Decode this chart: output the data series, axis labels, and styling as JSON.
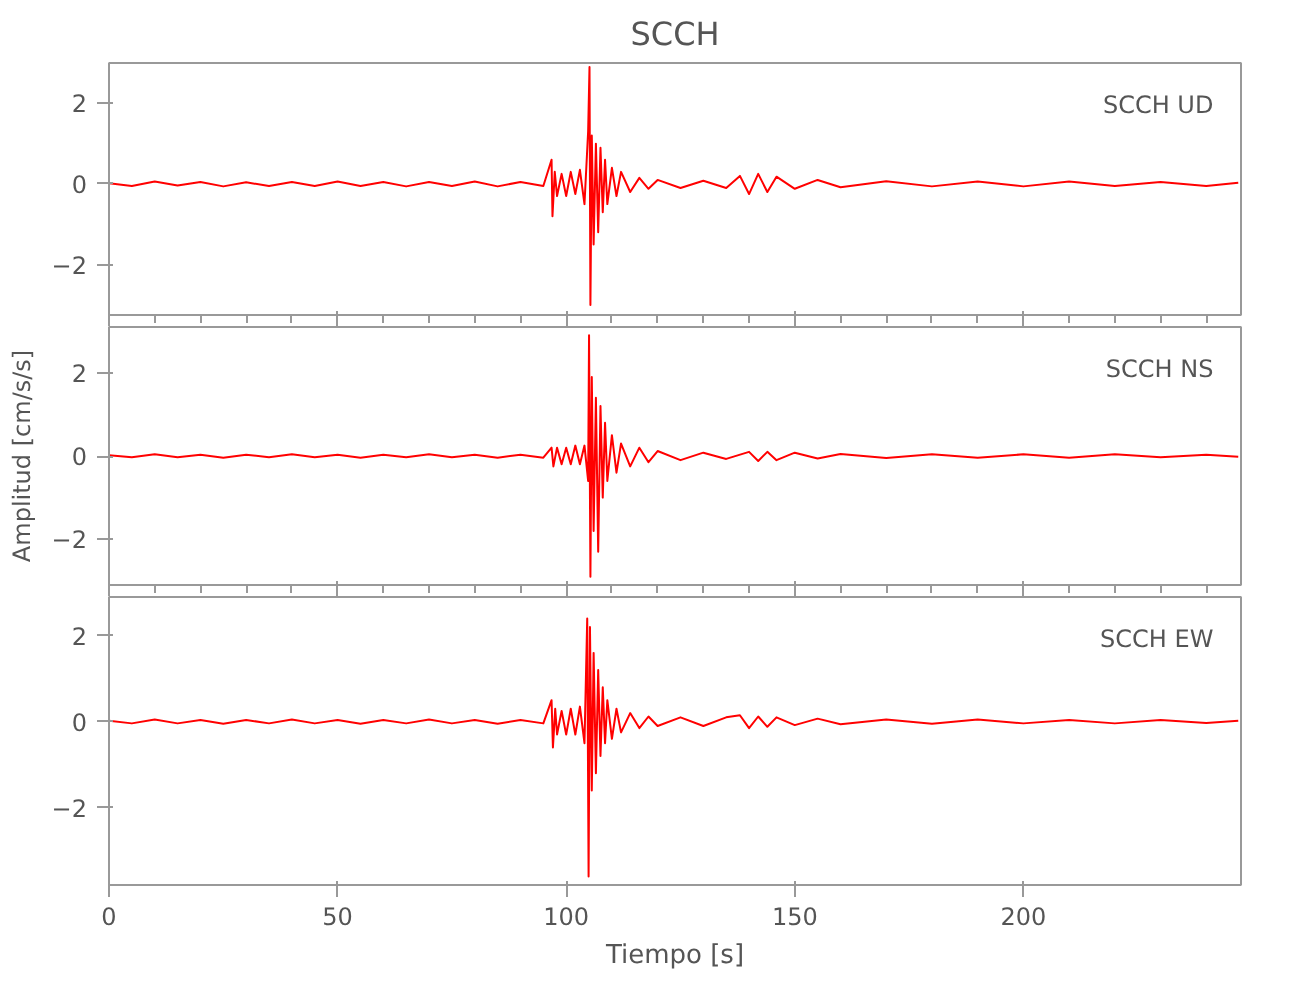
{
  "chart_data": [
    {
      "type": "line",
      "title": "SCCH",
      "annotations": [
        "SCCH  UD"
      ],
      "xlim": [
        0,
        247.6
      ],
      "ylim": [
        -3.25,
        3.0
      ],
      "yticks": [
        -2,
        0,
        2
      ],
      "tick_labels": "y",
      "grid": false,
      "series": [
        {
          "color": "#ff0000",
          "x": [
            0,
            5,
            10,
            15,
            20,
            25,
            30,
            35,
            40,
            45,
            50,
            55,
            60,
            65,
            70,
            75,
            80,
            85,
            90,
            95,
            96.8,
            97,
            97.5,
            98,
            99,
            100,
            101,
            102,
            103,
            104,
            104.8,
            105.1,
            105.3,
            105.6,
            106,
            106.5,
            107,
            107.5,
            108,
            108.5,
            109,
            110,
            111,
            112,
            114,
            116,
            118,
            120,
            125,
            130,
            135,
            138,
            140,
            142,
            144,
            146,
            150,
            155,
            160,
            170,
            180,
            190,
            200,
            210,
            220,
            230,
            240,
            247
          ],
          "values": [
            0.02,
            -0.05,
            0.06,
            -0.04,
            0.05,
            -0.06,
            0.04,
            -0.05,
            0.05,
            -0.05,
            0.06,
            -0.05,
            0.05,
            -0.06,
            0.05,
            -0.05,
            0.06,
            -0.06,
            0.05,
            -0.05,
            0.6,
            -0.8,
            0.3,
            -0.3,
            0.25,
            -0.3,
            0.3,
            -0.25,
            0.35,
            -0.5,
            1.3,
            2.9,
            -3.0,
            1.2,
            -1.5,
            1.0,
            -1.2,
            0.9,
            -0.7,
            0.6,
            -0.5,
            0.4,
            -0.3,
            0.3,
            -0.2,
            0.15,
            -0.12,
            0.1,
            -0.1,
            0.08,
            -0.1,
            0.2,
            -0.25,
            0.25,
            -0.2,
            0.18,
            -0.12,
            0.1,
            -0.08,
            0.07,
            -0.06,
            0.06,
            -0.06,
            0.06,
            -0.05,
            0.05,
            -0.05,
            0.03
          ]
        }
      ]
    },
    {
      "type": "line",
      "ylabel": "Amplitud [cm/s/s]",
      "annotations": [
        "SCCH  NS"
      ],
      "xlim": [
        0,
        247.6
      ],
      "ylim": [
        -3.1,
        3.1
      ],
      "yticks": [
        -2,
        0,
        2
      ],
      "tick_labels": "y",
      "grid": false,
      "series": [
        {
          "color": "#ff0000",
          "x": [
            0,
            5,
            10,
            15,
            20,
            25,
            30,
            35,
            40,
            45,
            50,
            55,
            60,
            65,
            70,
            75,
            80,
            85,
            90,
            95,
            96.8,
            97.2,
            98,
            99,
            100,
            101,
            102,
            103,
            104,
            104.8,
            105.0,
            105.3,
            105.6,
            106,
            106.5,
            107,
            107.5,
            108,
            108.5,
            109,
            110,
            111,
            112,
            114,
            116,
            118,
            120,
            125,
            130,
            135,
            140,
            142,
            144,
            146,
            150,
            155,
            160,
            170,
            180,
            190,
            200,
            210,
            220,
            230,
            240,
            247
          ],
          "values": [
            0.02,
            -0.03,
            0.04,
            -0.03,
            0.03,
            -0.04,
            0.03,
            -0.03,
            0.04,
            -0.03,
            0.03,
            -0.04,
            0.03,
            -0.03,
            0.04,
            -0.03,
            0.03,
            -0.04,
            0.03,
            -0.04,
            0.2,
            -0.25,
            0.2,
            -0.2,
            0.2,
            -0.2,
            0.25,
            -0.2,
            0.25,
            -0.6,
            2.9,
            -2.9,
            1.9,
            -1.8,
            1.4,
            -2.3,
            1.2,
            -1.0,
            0.8,
            -0.6,
            0.5,
            -0.4,
            0.3,
            -0.25,
            0.2,
            -0.15,
            0.12,
            -0.1,
            0.08,
            -0.07,
            0.1,
            -0.12,
            0.1,
            -0.1,
            0.08,
            -0.06,
            0.05,
            -0.05,
            0.04,
            -0.04,
            0.04,
            -0.04,
            0.04,
            -0.03,
            0.03,
            -0.02
          ]
        }
      ]
    },
    {
      "type": "line",
      "xlabel": "Tiempo [s]",
      "annotations": [
        "SCCH  EW"
      ],
      "xlim": [
        0,
        247.6
      ],
      "ylim": [
        -3.8,
        2.9
      ],
      "xticks": [
        0,
        50,
        100,
        150,
        200
      ],
      "yticks": [
        -2,
        0,
        2
      ],
      "grid": false,
      "series": [
        {
          "color": "#ff0000",
          "x": [
            0,
            5,
            10,
            15,
            20,
            25,
            30,
            35,
            40,
            45,
            50,
            55,
            60,
            65,
            70,
            75,
            80,
            85,
            90,
            95,
            96.8,
            97.1,
            97.6,
            98,
            99,
            100,
            101,
            102,
            103,
            104,
            104.6,
            104.9,
            105.2,
            105.6,
            106,
            106.5,
            107,
            107.5,
            108,
            108.5,
            109,
            110,
            111,
            112,
            114,
            116,
            118,
            120,
            125,
            130,
            135,
            138,
            140,
            142,
            144,
            146,
            150,
            155,
            160,
            170,
            180,
            190,
            200,
            210,
            220,
            230,
            240,
            247
          ],
          "values": [
            0.02,
            -0.04,
            0.05,
            -0.04,
            0.04,
            -0.05,
            0.04,
            -0.04,
            0.05,
            -0.04,
            0.04,
            -0.05,
            0.04,
            -0.04,
            0.05,
            -0.04,
            0.04,
            -0.05,
            0.04,
            -0.04,
            0.5,
            -0.6,
            0.3,
            -0.3,
            0.25,
            -0.3,
            0.3,
            -0.3,
            0.35,
            -0.5,
            2.4,
            -3.6,
            2.2,
            -1.6,
            1.6,
            -1.2,
            1.2,
            -0.8,
            0.8,
            -0.5,
            0.5,
            -0.4,
            0.3,
            -0.25,
            0.2,
            -0.15,
            0.12,
            -0.1,
            0.1,
            -0.1,
            0.1,
            0.15,
            -0.15,
            0.12,
            -0.12,
            0.1,
            -0.08,
            0.07,
            -0.06,
            0.05,
            -0.05,
            0.05,
            -0.04,
            0.04,
            -0.04,
            0.04,
            -0.03,
            0.02
          ]
        }
      ]
    }
  ]
}
